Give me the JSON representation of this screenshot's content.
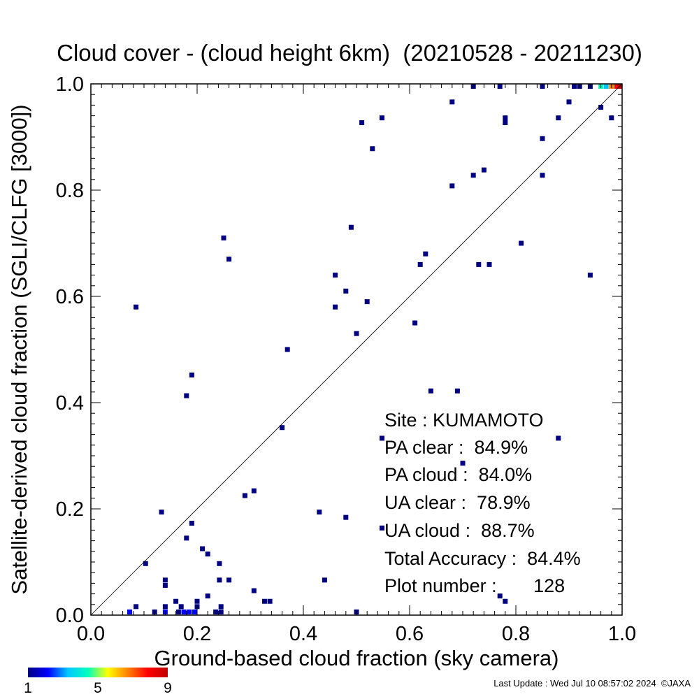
{
  "chart_data": {
    "type": "scatter",
    "title": "Cloud cover - (cloud height 6km)  (20210528 - 20211230)",
    "xlabel": "Ground-based cloud fraction (sky camera)",
    "ylabel": "Satellite-derived cloud fraction (SGLI/CLFG [3000])",
    "xlim": [
      0,
      1
    ],
    "ylim": [
      0,
      1
    ],
    "x_ticks": [
      "0.0",
      "0.2",
      "0.4",
      "0.6",
      "0.8",
      "1.0"
    ],
    "y_ticks": [
      "0.0",
      "0.2",
      "0.4",
      "0.6",
      "0.8",
      "1.0"
    ],
    "grid": false,
    "reference_line": "y = x",
    "colorbar": {
      "ticks": [
        "1",
        "5",
        "9"
      ],
      "range": [
        1,
        9
      ],
      "colors": [
        "#000080",
        "#0000ff",
        "#00c8ff",
        "#00ffc0",
        "#ffff00",
        "#ff8000",
        "#ff0000",
        "#c00000"
      ]
    },
    "points": [
      {
        "x": 0.085,
        "y": 0.58,
        "c": 1
      },
      {
        "x": 0.103,
        "y": 0.097,
        "c": 1
      },
      {
        "x": 0.133,
        "y": 0.194,
        "c": 1
      },
      {
        "x": 0.18,
        "y": 0.145,
        "c": 1
      },
      {
        "x": 0.18,
        "y": 0.413,
        "c": 1
      },
      {
        "x": 0.19,
        "y": 0.452,
        "c": 1
      },
      {
        "x": 0.19,
        "y": 0.173,
        "c": 1
      },
      {
        "x": 0.21,
        "y": 0.125,
        "c": 1
      },
      {
        "x": 0.22,
        "y": 0.115,
        "c": 1
      },
      {
        "x": 0.22,
        "y": 0.036,
        "c": 1
      },
      {
        "x": 0.242,
        "y": 0.097,
        "c": 1
      },
      {
        "x": 0.242,
        "y": 0.066,
        "c": 1
      },
      {
        "x": 0.25,
        "y": 0.71,
        "c": 1
      },
      {
        "x": 0.26,
        "y": 0.67,
        "c": 1
      },
      {
        "x": 0.26,
        "y": 0.066,
        "c": 1
      },
      {
        "x": 0.29,
        "y": 0.225,
        "c": 1
      },
      {
        "x": 0.307,
        "y": 0.234,
        "c": 1
      },
      {
        "x": 0.307,
        "y": 0.046,
        "c": 1
      },
      {
        "x": 0.327,
        "y": 0.026,
        "c": 1
      },
      {
        "x": 0.337,
        "y": 0.026,
        "c": 1
      },
      {
        "x": 0.36,
        "y": 0.353,
        "c": 1
      },
      {
        "x": 0.37,
        "y": 0.5,
        "c": 1
      },
      {
        "x": 0.43,
        "y": 0.194,
        "c": 1
      },
      {
        "x": 0.44,
        "y": 0.066,
        "c": 1
      },
      {
        "x": 0.46,
        "y": 0.64,
        "c": 1
      },
      {
        "x": 0.46,
        "y": 0.58,
        "c": 1
      },
      {
        "x": 0.48,
        "y": 0.61,
        "c": 1
      },
      {
        "x": 0.48,
        "y": 0.184,
        "c": 1
      },
      {
        "x": 0.49,
        "y": 0.73,
        "c": 1
      },
      {
        "x": 0.5,
        "y": 0.53,
        "c": 1
      },
      {
        "x": 0.5,
        "y": 0.006,
        "c": 1
      },
      {
        "x": 0.51,
        "y": 0.927,
        "c": 1
      },
      {
        "x": 0.52,
        "y": 0.59,
        "c": 1
      },
      {
        "x": 0.53,
        "y": 0.878,
        "c": 1
      },
      {
        "x": 0.548,
        "y": 0.936,
        "c": 1
      },
      {
        "x": 0.548,
        "y": 0.333,
        "c": 1
      },
      {
        "x": 0.548,
        "y": 0.164,
        "c": 1
      },
      {
        "x": 0.61,
        "y": 0.55,
        "c": 1
      },
      {
        "x": 0.62,
        "y": 0.66,
        "c": 1
      },
      {
        "x": 0.63,
        "y": 0.68,
        "c": 1
      },
      {
        "x": 0.64,
        "y": 0.422,
        "c": 1
      },
      {
        "x": 0.68,
        "y": 0.966,
        "c": 1
      },
      {
        "x": 0.68,
        "y": 0.808,
        "c": 1
      },
      {
        "x": 0.69,
        "y": 0.422,
        "c": 1
      },
      {
        "x": 0.7,
        "y": 0.286,
        "c": 1
      },
      {
        "x": 0.72,
        "y": 0.828,
        "c": 1
      },
      {
        "x": 0.72,
        "y": 0.996,
        "c": 1
      },
      {
        "x": 0.73,
        "y": 0.66,
        "c": 1
      },
      {
        "x": 0.74,
        "y": 0.838,
        "c": 1
      },
      {
        "x": 0.75,
        "y": 0.66,
        "c": 1
      },
      {
        "x": 0.77,
        "y": 0.996,
        "c": 1
      },
      {
        "x": 0.77,
        "y": 0.036,
        "c": 1
      },
      {
        "x": 0.78,
        "y": 0.936,
        "c": 1
      },
      {
        "x": 0.78,
        "y": 0.927,
        "c": 1
      },
      {
        "x": 0.78,
        "y": 0.026,
        "c": 1
      },
      {
        "x": 0.81,
        "y": 0.7,
        "c": 1
      },
      {
        "x": 0.85,
        "y": 0.897,
        "c": 1
      },
      {
        "x": 0.85,
        "y": 0.828,
        "c": 1
      },
      {
        "x": 0.85,
        "y": 0.996,
        "c": 1
      },
      {
        "x": 0.88,
        "y": 0.936,
        "c": 1
      },
      {
        "x": 0.88,
        "y": 0.333,
        "c": 1
      },
      {
        "x": 0.9,
        "y": 0.966,
        "c": 1
      },
      {
        "x": 0.91,
        "y": 0.996,
        "c": 1
      },
      {
        "x": 0.92,
        "y": 0.996,
        "c": 1
      },
      {
        "x": 0.94,
        "y": 0.64,
        "c": 1
      },
      {
        "x": 0.94,
        "y": 0.996,
        "c": 1
      },
      {
        "x": 0.96,
        "y": 0.956,
        "c": 1
      },
      {
        "x": 0.98,
        "y": 0.936,
        "c": 1
      },
      {
        "x": 0.96,
        "y": 0.996,
        "c": 4
      },
      {
        "x": 0.97,
        "y": 0.996,
        "c": 3
      },
      {
        "x": 0.98,
        "y": 0.996,
        "c": 7
      },
      {
        "x": 0.99,
        "y": 0.996,
        "c": 8
      },
      {
        "x": 1.0,
        "y": 0.996,
        "c": 9
      },
      {
        "x": 0.085,
        "y": 0.016,
        "c": 1
      },
      {
        "x": 0.073,
        "y": 0.006,
        "c": 2
      },
      {
        "x": 0.12,
        "y": 0.006,
        "c": 1
      },
      {
        "x": 0.14,
        "y": 0.016,
        "c": 1
      },
      {
        "x": 0.14,
        "y": 0.056,
        "c": 1
      },
      {
        "x": 0.14,
        "y": 0.066,
        "c": 1
      },
      {
        "x": 0.14,
        "y": 0.006,
        "c": 2
      },
      {
        "x": 0.16,
        "y": 0.026,
        "c": 1
      },
      {
        "x": 0.17,
        "y": 0.016,
        "c": 1
      },
      {
        "x": 0.165,
        "y": 0.006,
        "c": 1
      },
      {
        "x": 0.175,
        "y": 0.006,
        "c": 2
      },
      {
        "x": 0.185,
        "y": 0.006,
        "c": 2
      },
      {
        "x": 0.195,
        "y": 0.006,
        "c": 2
      },
      {
        "x": 0.2,
        "y": 0.026,
        "c": 1
      },
      {
        "x": 0.2,
        "y": 0.016,
        "c": 1
      },
      {
        "x": 0.235,
        "y": 0.006,
        "c": 1
      },
      {
        "x": 0.245,
        "y": 0.016,
        "c": 1
      },
      {
        "x": 0.245,
        "y": 0.006,
        "c": 1
      }
    ]
  },
  "stats": {
    "site": "Site : KUMAMOTO",
    "pa_clear": "PA clear :  84.9%",
    "pa_cloud": "PA cloud :  84.0%",
    "ua_clear": "UA clear :  78.9%",
    "ua_cloud": "UA cloud :  88.7%",
    "total_accuracy": "Total Accuracy :  84.4%",
    "plot_number": "Plot number :       128"
  },
  "footer": "Last Update : Wed Jul 10 08:57:02 2024  ©JAXA"
}
